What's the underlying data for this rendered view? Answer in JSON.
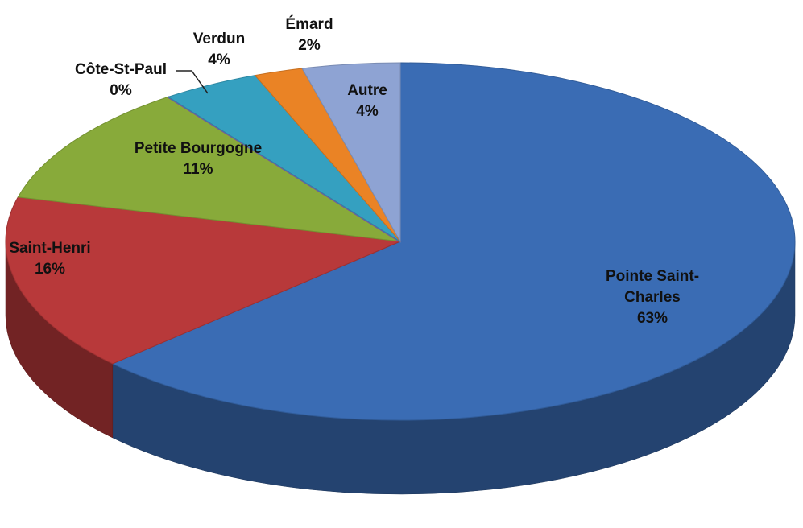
{
  "chart_data": {
    "type": "pie",
    "categories": [
      "Pointe Saint-Charles",
      "Saint-Henri",
      "Petite Bourgogne",
      "Côte-St-Paul",
      "Verdun",
      "Émard",
      "Autre"
    ],
    "values": [
      63,
      16,
      11,
      0,
      4,
      2,
      4
    ],
    "value_labels": [
      "63%",
      "16%",
      "11%",
      "0%",
      "4%",
      "2%",
      "4%"
    ],
    "colors": [
      "#3a6cb4",
      "#b8393a",
      "#88aa3a",
      "#7357a0",
      "#35a0c0",
      "#ea8325",
      "#8ea3d3"
    ]
  }
}
